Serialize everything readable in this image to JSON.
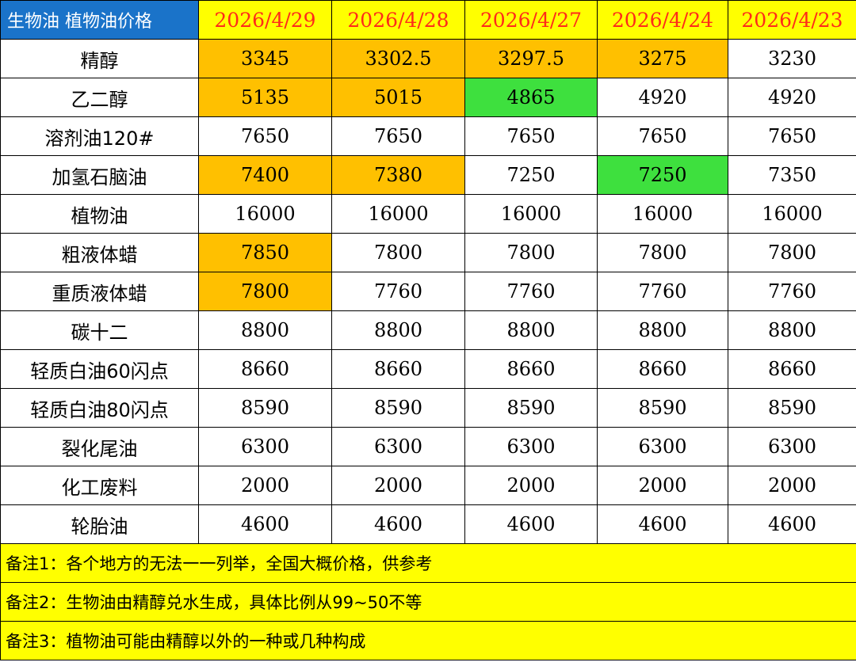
{
  "table": {
    "title": "生物油 植物油价格",
    "dates": [
      "2026/4/29",
      "2026/4/28",
      "2026/4/27",
      "2026/4/24",
      "2026/4/23"
    ],
    "rows": [
      {
        "name": "精醇",
        "values": [
          "3345",
          "3302.5",
          "3297.5",
          "3275",
          "3230"
        ],
        "highlight": [
          "up",
          "up",
          "up",
          "up",
          ""
        ]
      },
      {
        "name": "乙二醇",
        "values": [
          "5135",
          "5015",
          "4865",
          "4920",
          "4920"
        ],
        "highlight": [
          "up",
          "up",
          "down",
          "",
          ""
        ]
      },
      {
        "name": "溶剂油120#",
        "values": [
          "7650",
          "7650",
          "7650",
          "7650",
          "7650"
        ],
        "highlight": [
          "",
          "",
          "",
          "",
          ""
        ]
      },
      {
        "name": "加氢石脑油",
        "values": [
          "7400",
          "7380",
          "7250",
          "7250",
          "7350"
        ],
        "highlight": [
          "up",
          "up",
          "",
          "down",
          ""
        ]
      },
      {
        "name": "植物油",
        "values": [
          "16000",
          "16000",
          "16000",
          "16000",
          "16000"
        ],
        "highlight": [
          "",
          "",
          "",
          "",
          ""
        ]
      },
      {
        "name": "粗液体蜡",
        "values": [
          "7850",
          "7800",
          "7800",
          "7800",
          "7800"
        ],
        "highlight": [
          "up",
          "",
          "",
          "",
          ""
        ]
      },
      {
        "name": "重质液体蜡",
        "values": [
          "7800",
          "7760",
          "7760",
          "7760",
          "7760"
        ],
        "highlight": [
          "up",
          "",
          "",
          "",
          ""
        ]
      },
      {
        "name": "碳十二",
        "values": [
          "8800",
          "8800",
          "8800",
          "8800",
          "8800"
        ],
        "highlight": [
          "",
          "",
          "",
          "",
          ""
        ]
      },
      {
        "name": "轻质白油60闪点",
        "values": [
          "8660",
          "8660",
          "8660",
          "8660",
          "8660"
        ],
        "highlight": [
          "",
          "",
          "",
          "",
          ""
        ]
      },
      {
        "name": "轻质白油80闪点",
        "values": [
          "8590",
          "8590",
          "8590",
          "8590",
          "8590"
        ],
        "highlight": [
          "",
          "",
          "",
          "",
          ""
        ]
      },
      {
        "name": "裂化尾油",
        "values": [
          "6300",
          "6300",
          "6300",
          "6300",
          "6300"
        ],
        "highlight": [
          "",
          "",
          "",
          "",
          ""
        ]
      },
      {
        "name": "化工废料",
        "values": [
          "2000",
          "2000",
          "2000",
          "2000",
          "2000"
        ],
        "highlight": [
          "",
          "",
          "",
          "",
          ""
        ]
      },
      {
        "name": "轮胎油",
        "values": [
          "4600",
          "4600",
          "4600",
          "4600",
          "4600"
        ],
        "highlight": [
          "",
          "",
          "",
          "",
          ""
        ]
      }
    ]
  },
  "notes": [
    "备注1：各个地方的无法一一列举，全国大概价格，供参考",
    "备注2：生物油由精醇兑水生成，具体比例从99~50不等",
    "备注3：植物油可能由精醇以外的一种或几种构成"
  ],
  "colors": {
    "title_bg": "#1a73c9",
    "header_bg": "#ffff00",
    "header_text": "#ff2a1a",
    "increase_bg": "#ffc000",
    "decrease_bg": "#3ee03e",
    "note_bg": "#ffff00"
  }
}
